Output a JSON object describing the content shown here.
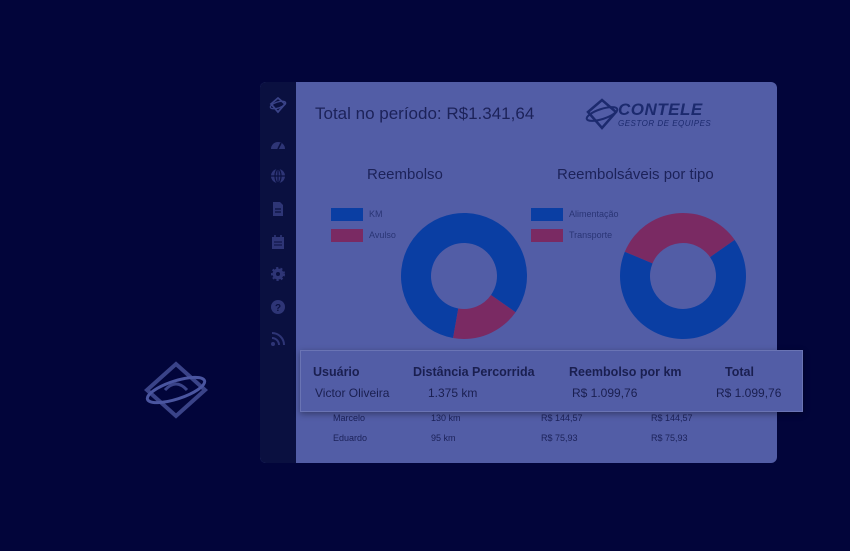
{
  "header": {
    "total_label": "Total no período: R$1.341,64"
  },
  "brand": {
    "name": "CONTELE",
    "tagline": "GESTOR DE EQUIPES"
  },
  "sidebar": {
    "icons": [
      "logo-icon",
      "dashboard-icon",
      "globe-icon",
      "document-icon",
      "calendar-icon",
      "gear-icon",
      "help-icon",
      "rss-icon"
    ]
  },
  "colors": {
    "background": "#02053a",
    "panel": "#525da6",
    "sidebar": "#0a1040",
    "blue": "#0a3ea3",
    "red": "#7a2a63"
  },
  "chart_data": [
    {
      "type": "pie",
      "title": "Reembolso",
      "legend_position": "left",
      "labels": [
        "KM",
        "Avulso"
      ],
      "values": [
        1099.76,
        241.88
      ]
    },
    {
      "type": "pie",
      "title": "Reembolsáveis por tipo",
      "legend_position": "left",
      "labels": [
        "Alimentação",
        "Transporte"
      ],
      "values": [
        66,
        34
      ]
    }
  ],
  "table": {
    "headers": [
      "Usuário",
      "Distância Percorrida",
      "Reembolso por km",
      "Total"
    ],
    "highlight_row": [
      "Victor Oliveira",
      "1.375 km",
      "R$ 1.099,76",
      "R$ 1.099,76"
    ],
    "rows": [
      [
        "Marcelo",
        "130 km",
        "R$ 144,57",
        "R$ 144,57"
      ],
      [
        "Eduardo",
        "95 km",
        "R$ 75,93",
        "R$ 75,93"
      ]
    ]
  }
}
